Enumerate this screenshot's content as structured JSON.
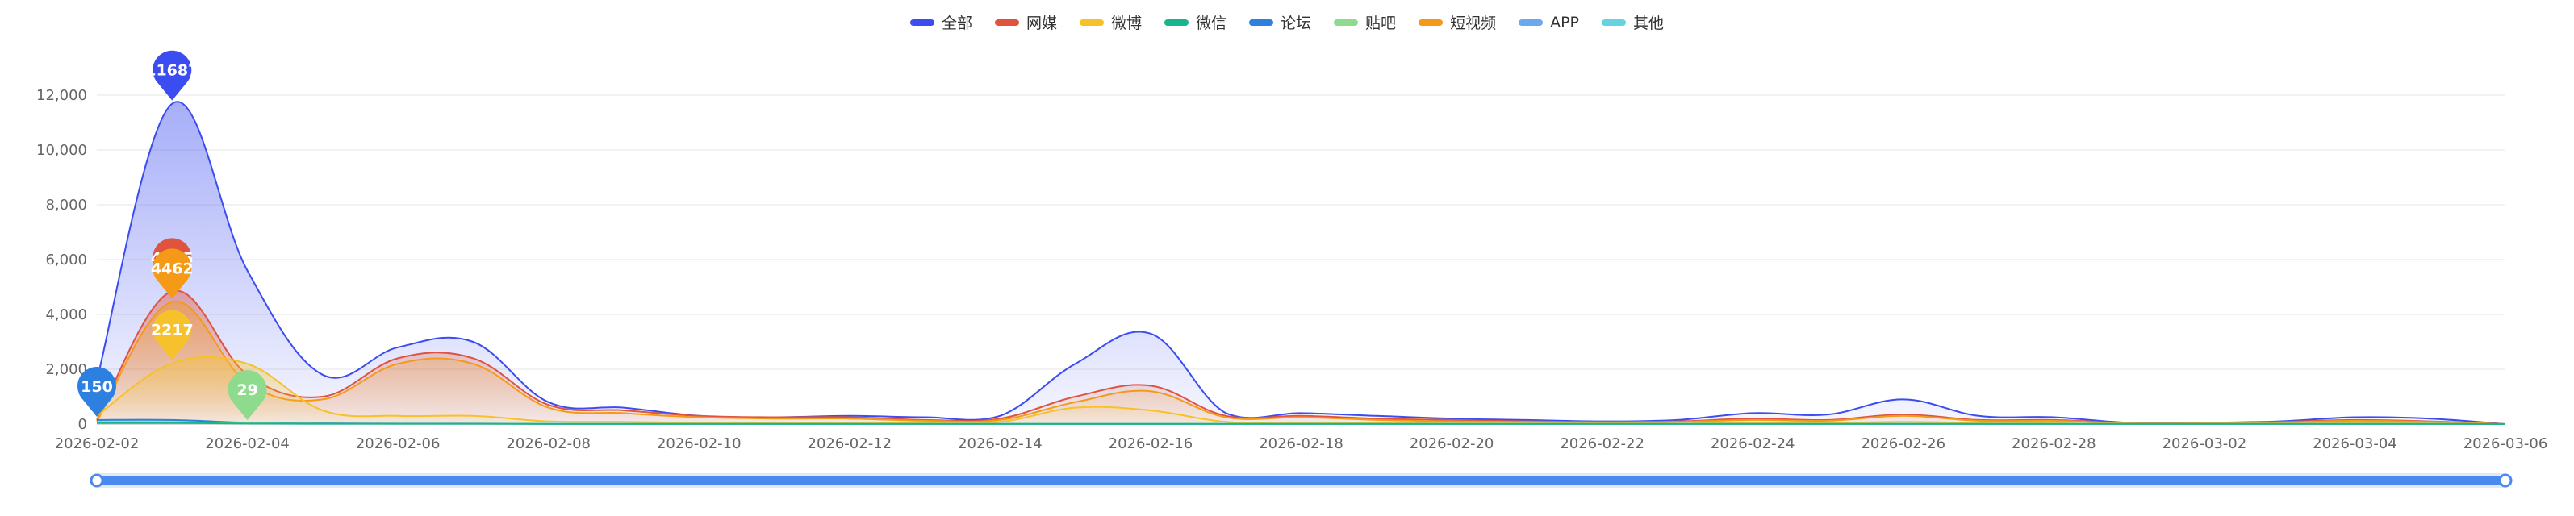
{
  "chart_data": {
    "type": "area",
    "legend": [
      {
        "name": "全部",
        "color": "#3b4cf0"
      },
      {
        "name": "网媒",
        "color": "#e0533d"
      },
      {
        "name": "微博",
        "color": "#f6c12a"
      },
      {
        "name": "微信",
        "color": "#18b58c"
      },
      {
        "name": "论坛",
        "color": "#2e80e0"
      },
      {
        "name": "贴吧",
        "color": "#8edb8e"
      },
      {
        "name": "短视频",
        "color": "#f59a17"
      },
      {
        "name": "APP",
        "color": "#6aa9ef"
      },
      {
        "name": "其他",
        "color": "#67d3e2"
      }
    ],
    "x": [
      "2026-02-02",
      "2026-02-03",
      "2026-02-04",
      "2026-02-05",
      "2026-02-06",
      "2026-02-07",
      "2026-02-08",
      "2026-02-09",
      "2026-02-10",
      "2026-02-11",
      "2026-02-12",
      "2026-02-13",
      "2026-02-14",
      "2026-02-15",
      "2026-02-16",
      "2026-02-17",
      "2026-02-18",
      "2026-02-19",
      "2026-02-20",
      "2026-02-21",
      "2026-02-22",
      "2026-02-23",
      "2026-02-24",
      "2026-02-25",
      "2026-02-26",
      "2026-02-27",
      "2026-02-28",
      "2026-03-01",
      "2026-03-02",
      "2026-03-03",
      "2026-03-04",
      "2026-03-05",
      "2026-03-06"
    ],
    "x_tick_labels": [
      "2026-02-02",
      "2026-02-04",
      "2026-02-06",
      "2026-02-08",
      "2026-02-10",
      "2026-02-12",
      "2026-02-14",
      "2026-02-16",
      "2026-02-18",
      "2026-02-20",
      "2026-02-22",
      "2026-02-24",
      "2026-02-26",
      "2026-02-28",
      "2026-03-02",
      "2026-03-04",
      "2026-03-06"
    ],
    "y_ticks": [
      0,
      2000,
      4000,
      6000,
      8000,
      10000,
      12000
    ],
    "y_tick_labels": [
      "0",
      "2,000",
      "4,000",
      "6,000",
      "8,000",
      "10,000",
      "12,000"
    ],
    "ylim": [
      0,
      12000
    ],
    "grid": true,
    "series": [
      {
        "name": "全部",
        "values": [
          1600,
          11687,
          5600,
          1800,
          2800,
          3000,
          800,
          600,
          300,
          250,
          300,
          250,
          300,
          2200,
          3300,
          400,
          400,
          300,
          200,
          150,
          100,
          150,
          400,
          350,
          900,
          300,
          250,
          50,
          50,
          100,
          250,
          200,
          0
        ]
      },
      {
        "name": "网媒",
        "values": [
          150,
          4845,
          1800,
          1000,
          2400,
          2400,
          700,
          500,
          300,
          250,
          250,
          150,
          200,
          1000,
          1400,
          300,
          300,
          200,
          150,
          100,
          80,
          100,
          200,
          150,
          350,
          150,
          150,
          40,
          40,
          80,
          150,
          100,
          0
        ]
      },
      {
        "name": "短视频",
        "values": [
          100,
          4462,
          1500,
          900,
          2200,
          2200,
          600,
          400,
          250,
          200,
          200,
          120,
          150,
          800,
          1200,
          250,
          250,
          150,
          100,
          80,
          60,
          80,
          150,
          120,
          300,
          120,
          120,
          30,
          30,
          60,
          120,
          80,
          0
        ]
      },
      {
        "name": "微博",
        "values": [
          300,
          2217,
          2200,
          500,
          300,
          300,
          100,
          80,
          50,
          50,
          50,
          50,
          80,
          600,
          500,
          80,
          60,
          50,
          40,
          30,
          20,
          20,
          50,
          40,
          80,
          40,
          30,
          10,
          10,
          20,
          40,
          30,
          0
        ]
      },
      {
        "name": "论坛",
        "values": [
          150,
          150,
          50,
          30,
          20,
          20,
          10,
          10,
          10,
          10,
          10,
          10,
          10,
          10,
          10,
          10,
          10,
          10,
          10,
          10,
          10,
          10,
          10,
          10,
          10,
          10,
          10,
          10,
          10,
          10,
          10,
          10,
          0
        ]
      },
      {
        "name": "贴吧",
        "values": [
          60,
          60,
          29,
          20,
          10,
          10,
          10,
          10,
          10,
          10,
          10,
          10,
          10,
          10,
          10,
          10,
          10,
          10,
          10,
          10,
          10,
          10,
          10,
          10,
          10,
          10,
          10,
          10,
          10,
          10,
          10,
          10,
          0
        ]
      },
      {
        "name": "微信",
        "values": [
          40,
          40,
          20,
          10,
          10,
          10,
          5,
          5,
          5,
          5,
          5,
          5,
          5,
          5,
          5,
          5,
          5,
          5,
          5,
          5,
          5,
          5,
          5,
          5,
          5,
          5,
          5,
          5,
          5,
          5,
          5,
          5,
          0
        ]
      }
    ],
    "markers": [
      {
        "series": "全部",
        "x": "2026-02-03",
        "label": "11687",
        "color": "#3b4cf0"
      },
      {
        "series": "网媒",
        "x": "2026-02-03",
        "label": "4845",
        "color": "#e0533d"
      },
      {
        "series": "短视频",
        "x": "2026-02-03",
        "label": "4462",
        "color": "#f59a17"
      },
      {
        "series": "微博",
        "x": "2026-02-03",
        "label": "2217",
        "color": "#f6c12a"
      },
      {
        "series": "论坛",
        "x": "2026-02-02",
        "label": "150",
        "color": "#2e80e0"
      },
      {
        "series": "贴吧",
        "x": "2026-02-04",
        "label": "29",
        "color": "#8edb8e"
      }
    ],
    "zoom": {
      "start": 0,
      "end": 100
    }
  }
}
